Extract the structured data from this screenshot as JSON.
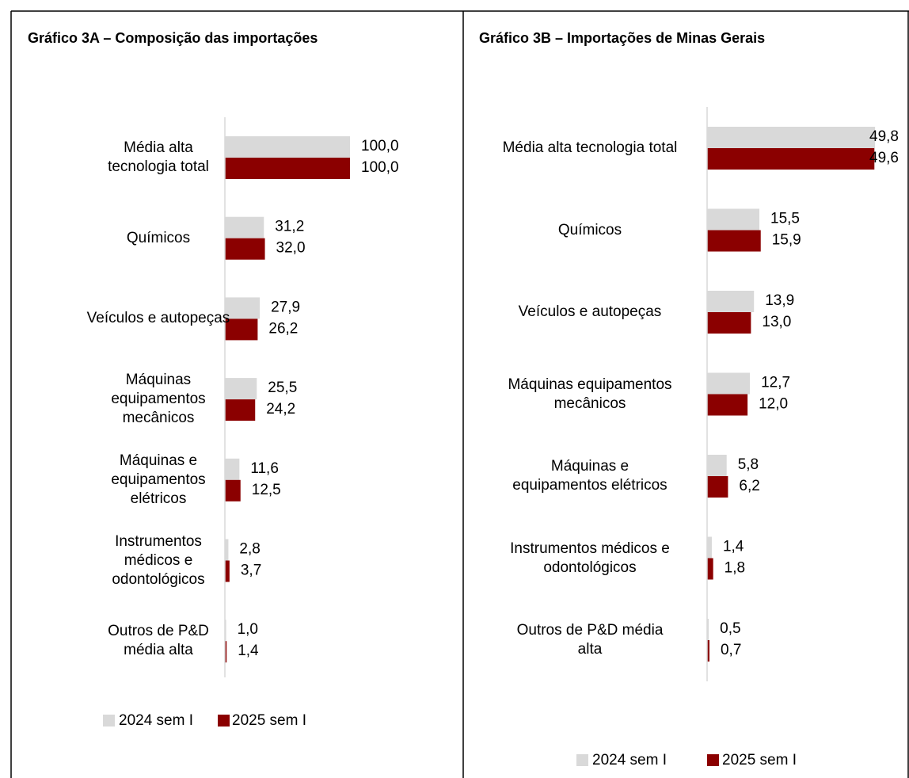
{
  "chart_data": [
    {
      "type": "bar",
      "title": "Gráfico 3A – Composição das importações",
      "categories": [
        "Média alta tecnologia total",
        "Químicos",
        "Veículos e autopeças",
        "Máquinas equipamentos mecânicos",
        "Máquinas e equipamentos elétricos",
        "Instrumentos médicos e odontológicos",
        "Outros de P&D média alta"
      ],
      "series": [
        {
          "name": "2024 sem I",
          "color": "#d9d9d9",
          "values": [
            100.0,
            31.2,
            27.9,
            25.5,
            11.6,
            2.8,
            1.0
          ],
          "value_labels": [
            "100,0",
            "31,2",
            "27,9",
            "25,5",
            "11,6",
            "2,8",
            "1,0"
          ]
        },
        {
          "name": "2025 sem I",
          "color": "#8b0000",
          "values": [
            100.0,
            32.0,
            26.2,
            24.2,
            12.5,
            3.7,
            1.4
          ],
          "value_labels": [
            "100,0",
            "32,0",
            "26,2",
            "24,2",
            "12,5",
            "3,7",
            "1,4"
          ]
        }
      ],
      "xlim": [
        0,
        100
      ]
    },
    {
      "type": "bar",
      "title": "Gráfico 3B – Importações de Minas Gerais",
      "categories": [
        "Média alta tecnologia total",
        "Químicos",
        "Veículos e autopeças",
        "Máquinas equipamentos mecânicos",
        "Máquinas e equipamentos elétricos",
        "Instrumentos médicos e odontológicos",
        "Outros de P&D média alta"
      ],
      "series": [
        {
          "name": "2024 sem I",
          "color": "#d9d9d9",
          "values": [
            49.8,
            15.5,
            13.9,
            12.7,
            5.8,
            1.4,
            0.5
          ],
          "value_labels": [
            "49,8",
            "15,5",
            "13,9",
            "12,7",
            "5,8",
            "1,4",
            "0,5"
          ]
        },
        {
          "name": "2025 sem I",
          "color": "#8b0000",
          "values": [
            49.6,
            15.9,
            13.0,
            12.0,
            6.2,
            1.8,
            0.7
          ],
          "value_labels": [
            "49,6",
            "15,9",
            "13,0",
            "12,0",
            "6,2",
            "1,8",
            "0,7"
          ]
        }
      ],
      "xlim": [
        0,
        50
      ]
    }
  ]
}
